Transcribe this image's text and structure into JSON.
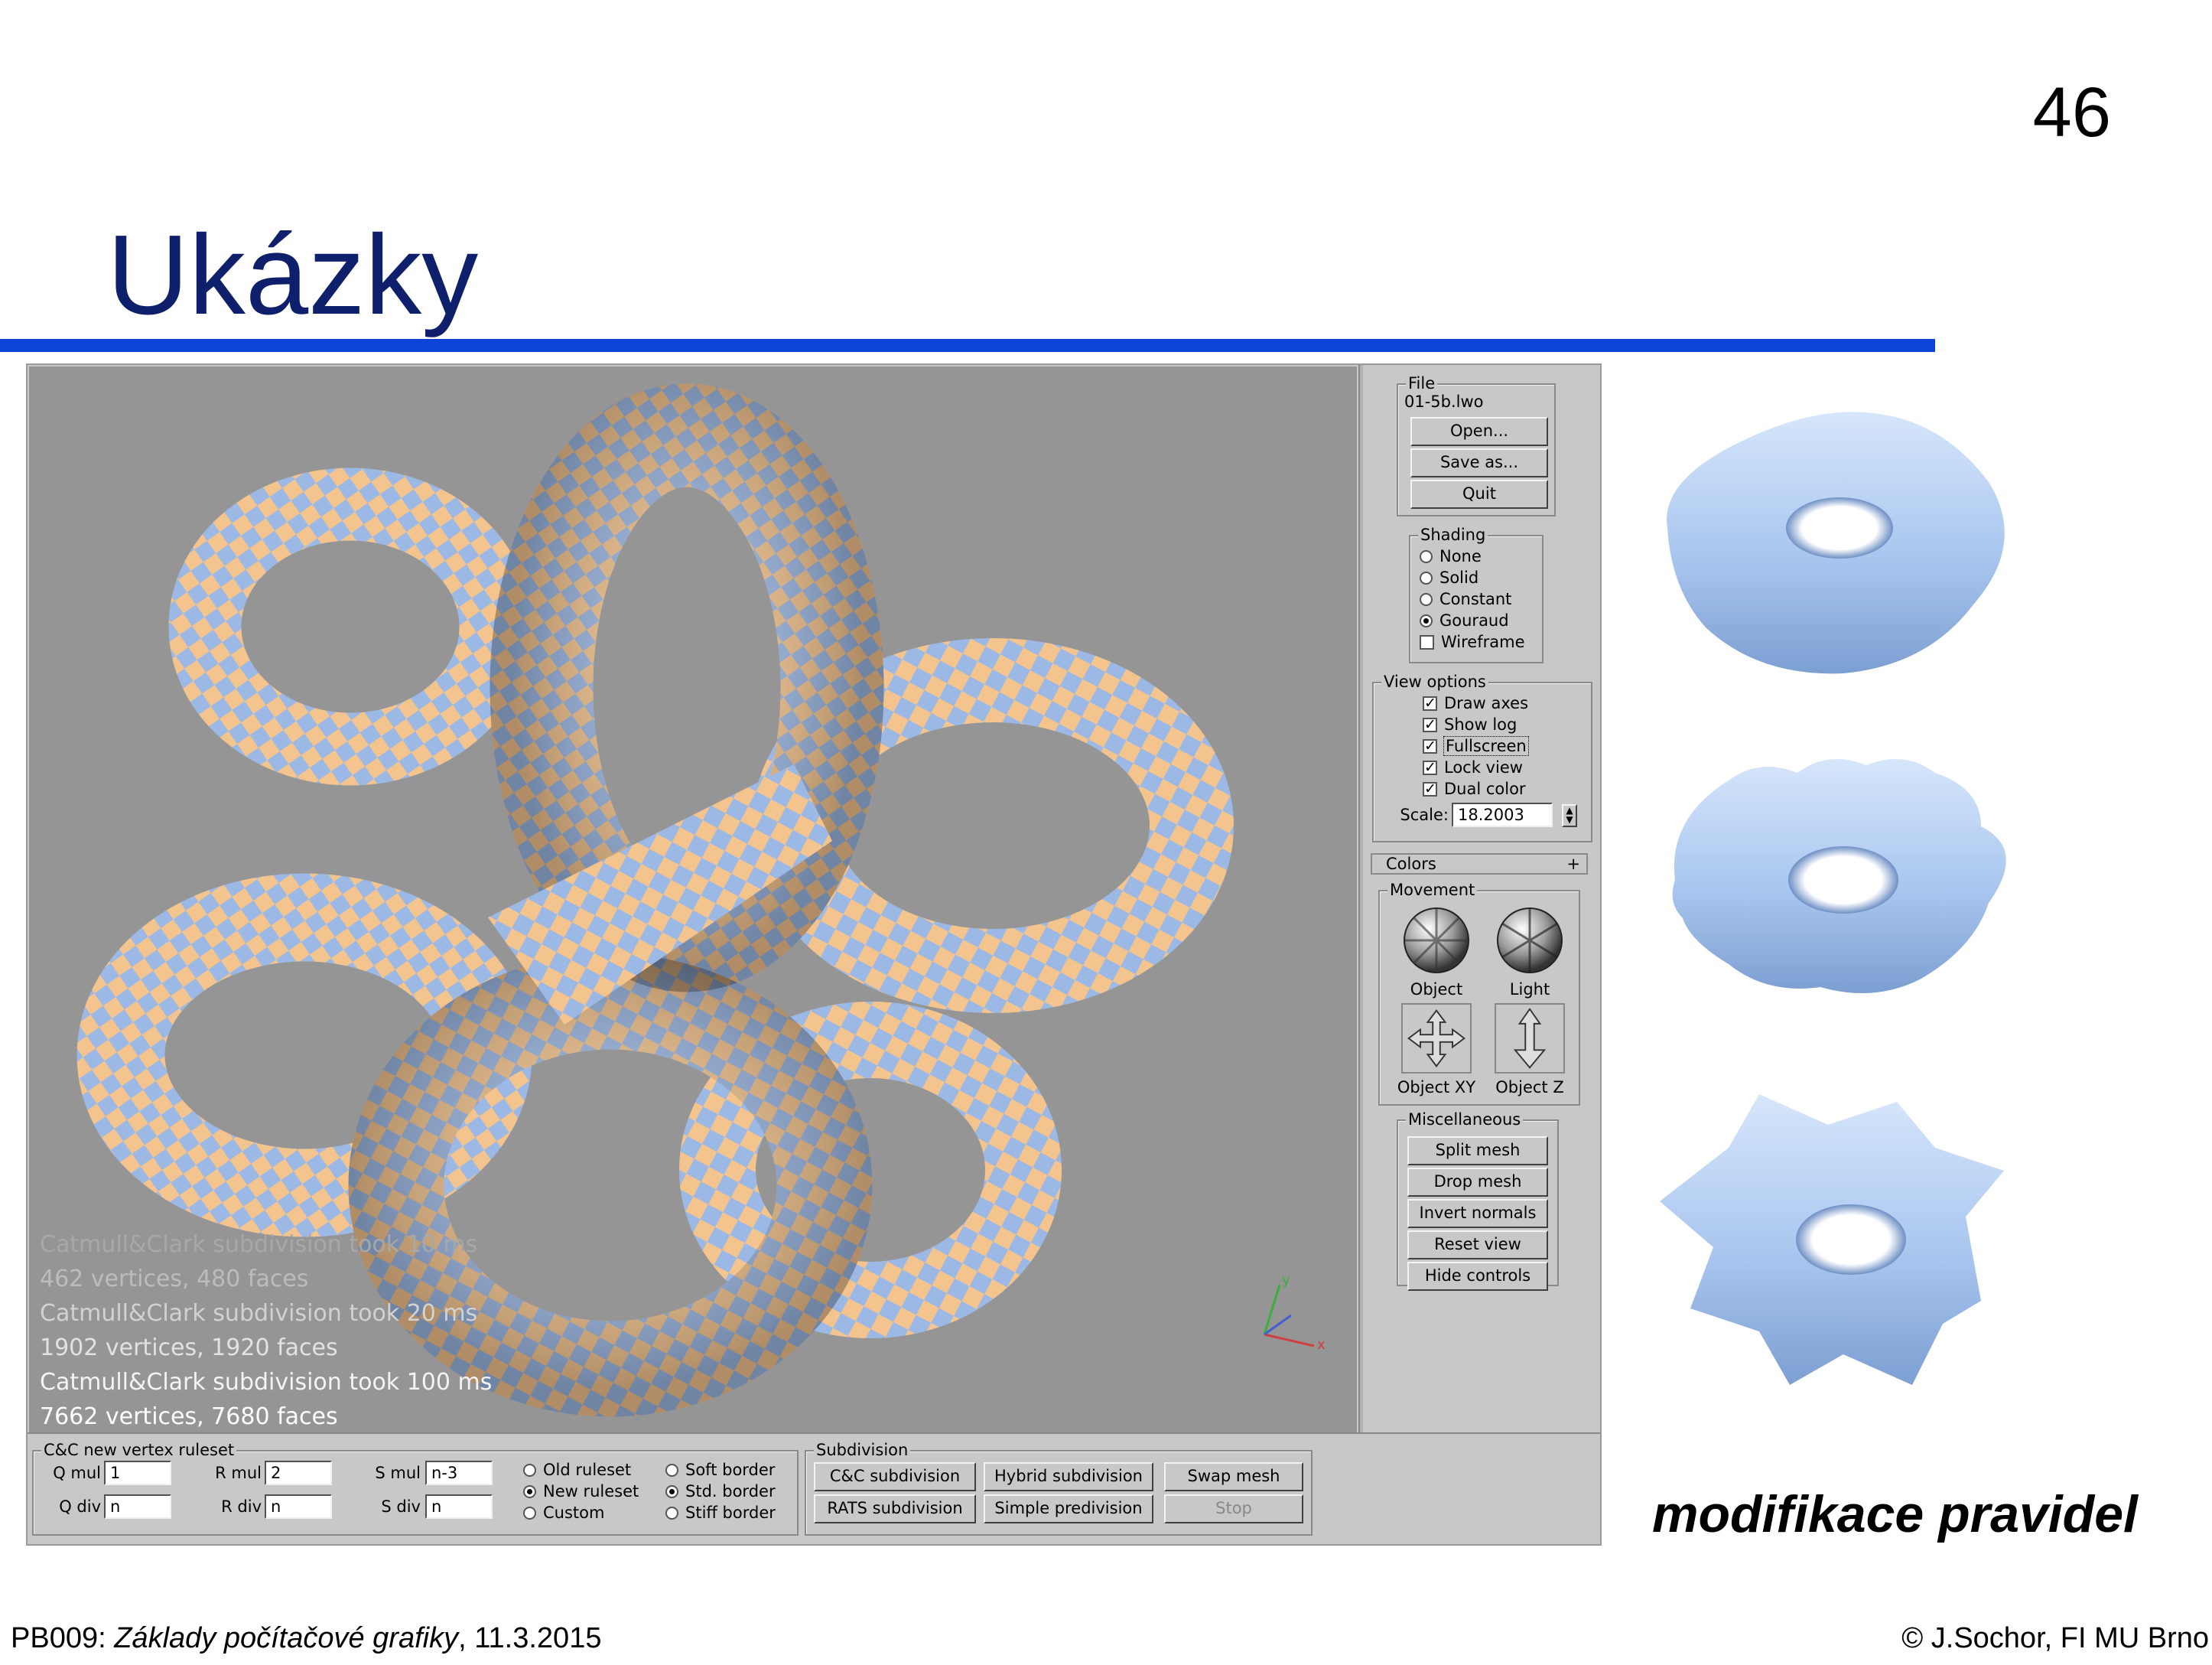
{
  "slide": {
    "number": "46",
    "title": "Ukázky",
    "caption": "modifikace pravidel",
    "footer": {
      "course": "PB009",
      "separator": ": ",
      "course_name": "Základy počítačové grafiky",
      "date": ", 11.3.2015",
      "copyright": "© J.Sochor, FI MU Brno"
    }
  },
  "app": {
    "viewport_log": [
      "Catmull&Clark subdivision took 10 ms",
      "462 vertices, 480 faces",
      "Catmull&Clark subdivision took 20 ms",
      "1902 vertices, 1920 faces",
      "Catmull&Clark subdivision took 100 ms",
      "7662 vertices, 7680 faces"
    ],
    "axes_labels": {
      "y": "y",
      "x": "x"
    },
    "colors": {
      "checker_a": "#f4c48e",
      "checker_b": "#9cb8e4",
      "background": "#959595"
    },
    "file": {
      "legend": "File",
      "filename": "01-5b.lwo",
      "open": "Open...",
      "save_as": "Save as...",
      "quit": "Quit"
    },
    "shading": {
      "legend": "Shading",
      "options": [
        "None",
        "Solid",
        "Constant",
        "Gouraud"
      ],
      "selected": "Gouraud",
      "wireframe_label": "Wireframe",
      "wireframe_checked": false
    },
    "view_options": {
      "legend": "View options",
      "draw_axes": "Draw axes",
      "show_log": "Show log",
      "fullscreen": "Fullscreen",
      "lock_view": "Lock view",
      "dual_color": "Dual color",
      "check_mark": "✓",
      "scale_label": "Scale:",
      "scale_value": "18.2003"
    },
    "colors_panel": {
      "label": "Colors",
      "expand": "+"
    },
    "movement": {
      "legend": "Movement",
      "object": "Object",
      "light": "Light",
      "object_xy": "Object XY",
      "object_z": "Object Z"
    },
    "misc": {
      "legend": "Miscellaneous",
      "split_mesh": "Split mesh",
      "drop_mesh": "Drop mesh",
      "invert_normals": "Invert normals",
      "reset_view": "Reset view",
      "hide_controls": "Hide controls"
    },
    "ruleset": {
      "legend": "C&C new vertex ruleset",
      "q_mul_label": "Q mul",
      "q_mul": "1",
      "q_div_label": "Q div",
      "q_div": "n",
      "r_mul_label": "R mul",
      "r_mul": "2",
      "r_div_label": "R div",
      "r_div": "n",
      "s_mul_label": "S mul",
      "s_mul": "n-3",
      "s_div_label": "S div",
      "s_div": "n",
      "rule_options": [
        "Old ruleset",
        "New ruleset",
        "Custom"
      ],
      "rule_selected": "New ruleset",
      "border_options": [
        "Soft border",
        "Std. border",
        "Stiff border"
      ],
      "border_selected": "Std. border"
    },
    "subdivision": {
      "legend": "Subdivision",
      "cc": "C&C subdivision",
      "hybrid": "Hybrid subdivision",
      "swap": "Swap mesh",
      "rats": "RATS subdivision",
      "simple": "Simple predivision",
      "stop": "Stop"
    }
  }
}
